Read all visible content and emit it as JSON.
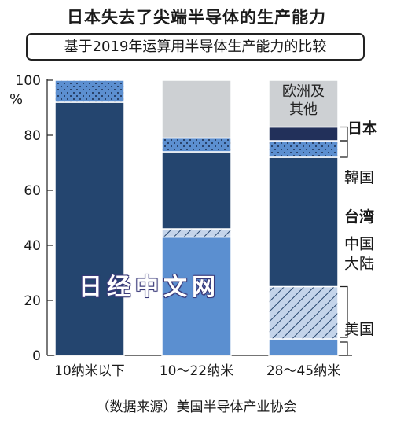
{
  "title": "日本失去了尖端半导体的生产能力",
  "subtitle": "基于2019年运算用半导体生产能力的比较",
  "source_note": "（数据来源）美国半导体产业协会",
  "watermark": "日经中文网",
  "colors": {
    "japan": "#22305a",
    "korea": "#5c8fd0",
    "taiwan": "#24456f",
    "china": "#c4d4ea",
    "usa": "#5b8fd0",
    "europe_other": "#cdd0d3"
  },
  "chart_data": {
    "type": "bar",
    "stacked": true,
    "title": "基于2019年运算用半导体生产能力的比较",
    "ylabel": "%",
    "ylim": [
      0,
      100
    ],
    "yticks": [
      "0",
      "20",
      "40",
      "60",
      "80",
      "100"
    ],
    "grid": false,
    "categories": [
      "10纳米以下",
      "10～22纳米",
      "28～45纳米"
    ],
    "series": [
      {
        "name": "美国",
        "key": "usa",
        "pattern": "solid",
        "values": [
          0,
          43,
          6
        ]
      },
      {
        "name": "中国大陆",
        "key": "china",
        "pattern": "hatch",
        "values": [
          0,
          3,
          19
        ]
      },
      {
        "name": "台湾",
        "key": "taiwan",
        "pattern": "solid",
        "values": [
          92,
          28,
          47
        ]
      },
      {
        "name": "韩国",
        "key": "korea",
        "pattern": "dots",
        "values": [
          8,
          5,
          6
        ]
      },
      {
        "name": "日本",
        "key": "japan",
        "pattern": "solid",
        "values": [
          0,
          0,
          5
        ]
      },
      {
        "name": "欧洲及其他",
        "key": "europe_other",
        "pattern": "solid",
        "values": [
          0,
          21,
          17
        ]
      }
    ],
    "labels": {
      "europe_other": [
        "欧洲及",
        "其他"
      ],
      "japan": "日本",
      "korea": "韓国",
      "taiwan": "台湾",
      "china": [
        "中国",
        "大陆"
      ],
      "usa": "美国"
    }
  }
}
